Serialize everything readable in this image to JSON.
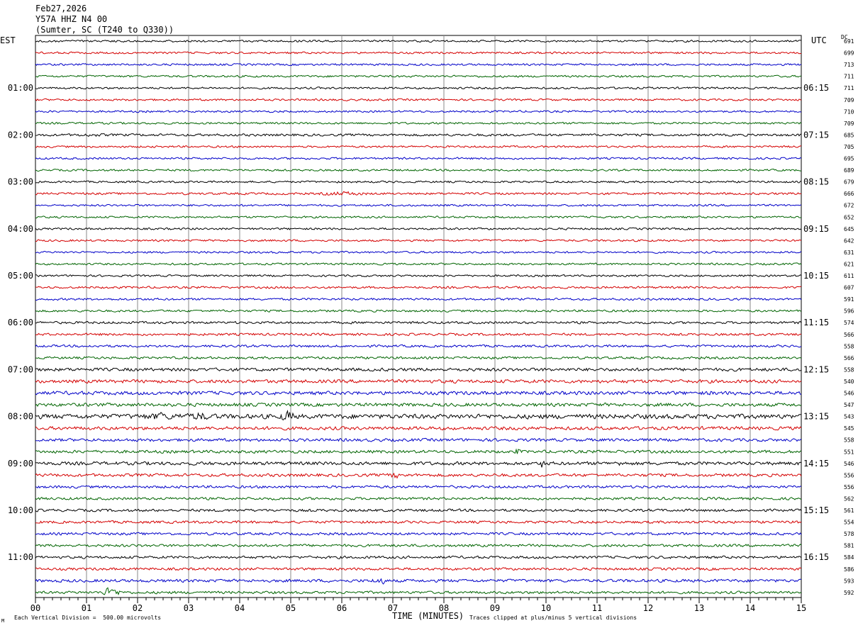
{
  "header": {
    "date": "Feb27,2026",
    "station": "Y57A HHZ N4 00",
    "location": "(Sumter, SC (T240 to Q330))"
  },
  "left_tz": "EST",
  "right_tz": "UTC",
  "dc_label": "DC",
  "footer": {
    "scale": "Each Vertical Division =  500.00 microvolts",
    "clip": "Traces clipped at plus/minus 5 vertical divisions",
    "corner_mark": "M"
  },
  "colors": [
    "#000000",
    "#d40000",
    "#0000c8",
    "#006400"
  ],
  "chart_data": {
    "type": "line",
    "subtype": "helicorder",
    "xlabel": "TIME (MINUTES)",
    "xlim": [
      0,
      15
    ],
    "x_ticks": [
      "00",
      "01",
      "02",
      "03",
      "04",
      "05",
      "06",
      "07",
      "08",
      "09",
      "10",
      "11",
      "12",
      "13",
      "14",
      "15"
    ],
    "lines_per_hour": 4,
    "left_hour_labels": [
      "01:00",
      "02:00",
      "03:00",
      "04:00",
      "05:00",
      "06:00",
      "07:00",
      "08:00",
      "09:00",
      "10:00",
      "11:00"
    ],
    "right_hour_labels": [
      "06:15",
      "07:15",
      "08:15",
      "09:15",
      "10:15",
      "11:15",
      "12:15",
      "13:15",
      "14:15",
      "15:15",
      "16:15"
    ],
    "dc_offsets": [
      691,
      699,
      713,
      711,
      711,
      709,
      710,
      709,
      685,
      705,
      695,
      689,
      679,
      666,
      672,
      652,
      645,
      642,
      631,
      621,
      611,
      607,
      591,
      596,
      574,
      566,
      558,
      566,
      558,
      540,
      546,
      547,
      543,
      545,
      558,
      551,
      546,
      556,
      556,
      562,
      561,
      554,
      578,
      581,
      584,
      586,
      593,
      592
    ],
    "line_amplitude_level": [
      1,
      1,
      1,
      1,
      1,
      1,
      1,
      1,
      1.2,
      1,
      1,
      1,
      1,
      1.1,
      1,
      1,
      1,
      1,
      1,
      1,
      1,
      1.1,
      1.1,
      1.1,
      1.2,
      1.2,
      1.2,
      1.2,
      1.6,
      1.7,
      1.8,
      1.7,
      2.3,
      1.7,
      1.5,
      1.5,
      1.7,
      1.5,
      1.3,
      1.3,
      1.3,
      1.3,
      1.3,
      1.3,
      1.3,
      1.3,
      1.5,
      1.3
    ],
    "events": [
      {
        "line": 8,
        "minute": 0.5,
        "duration": 1.7,
        "amp": 1.6
      },
      {
        "line": 13,
        "minute": 5.5,
        "duration": 1.5,
        "amp": 2.2
      },
      {
        "line": 30,
        "minute": 6.0,
        "duration": 1.5,
        "amp": 1.8
      },
      {
        "line": 30,
        "minute": 13.1,
        "duration": 0.4,
        "amp": 2.2
      },
      {
        "line": 32,
        "minute": 1.0,
        "duration": 5.0,
        "amp": 3.0
      },
      {
        "line": 32,
        "minute": 2.3,
        "duration": 0.4,
        "amp": 5.0
      },
      {
        "line": 32,
        "minute": 3.0,
        "duration": 0.6,
        "amp": 4.5
      },
      {
        "line": 32,
        "minute": 4.8,
        "duration": 0.4,
        "amp": 6.0
      },
      {
        "line": 35,
        "minute": 9.4,
        "duration": 0.1,
        "amp": 5.0
      },
      {
        "line": 36,
        "minute": 9.9,
        "duration": 0.1,
        "amp": 6.0
      },
      {
        "line": 36,
        "minute": 11.4,
        "duration": 0.2,
        "amp": 3.5
      },
      {
        "line": 37,
        "minute": 6.9,
        "duration": 0.5,
        "amp": 3.0
      },
      {
        "line": 46,
        "minute": 3.6,
        "duration": 0.3,
        "amp": 1.8
      },
      {
        "line": 46,
        "minute": 6.6,
        "duration": 0.4,
        "amp": 4.0
      },
      {
        "line": 47,
        "minute": 1.3,
        "duration": 0.5,
        "amp": 5.0
      }
    ]
  }
}
